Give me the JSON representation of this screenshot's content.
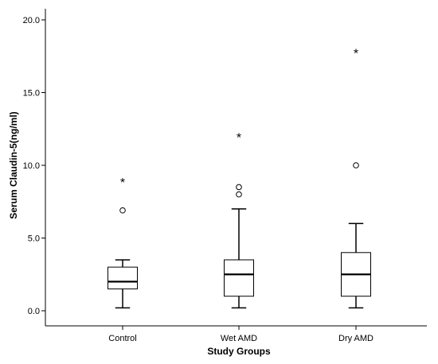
{
  "chart_data": {
    "type": "boxplot",
    "xlabel": "Study Groups",
    "ylabel": "Serum Claudin-5(ng/ml)",
    "ylim": [
      0,
      20
    ],
    "y_ticks": [
      0,
      5,
      10,
      15,
      20
    ],
    "y_tick_labels": [
      "0.0",
      "5.0",
      "10.0",
      "15.0",
      "20.0"
    ],
    "grid": false,
    "categories": [
      "Control",
      "Wet AMD",
      "Dry AMD"
    ],
    "boxes": [
      {
        "category": "Control",
        "whisker_low": 0.2,
        "q1": 1.5,
        "median": 2.0,
        "q3": 3.0,
        "whisker_high": 3.5,
        "outliers": [
          6.9
        ],
        "extremes": [
          8.9
        ]
      },
      {
        "category": "Wet AMD",
        "whisker_low": 0.2,
        "q1": 1.0,
        "median": 2.5,
        "q3": 3.5,
        "whisker_high": 7.0,
        "outliers": [
          8.0,
          8.5
        ],
        "extremes": [
          12.0
        ]
      },
      {
        "category": "Dry AMD",
        "whisker_low": 0.2,
        "q1": 1.0,
        "median": 2.5,
        "q3": 4.0,
        "whisker_high": 6.0,
        "outliers": [
          10.0
        ],
        "extremes": [
          17.8
        ]
      }
    ],
    "colors": {
      "background": "#ffffff",
      "axis": "#000000",
      "box_stroke": "#000000"
    }
  }
}
